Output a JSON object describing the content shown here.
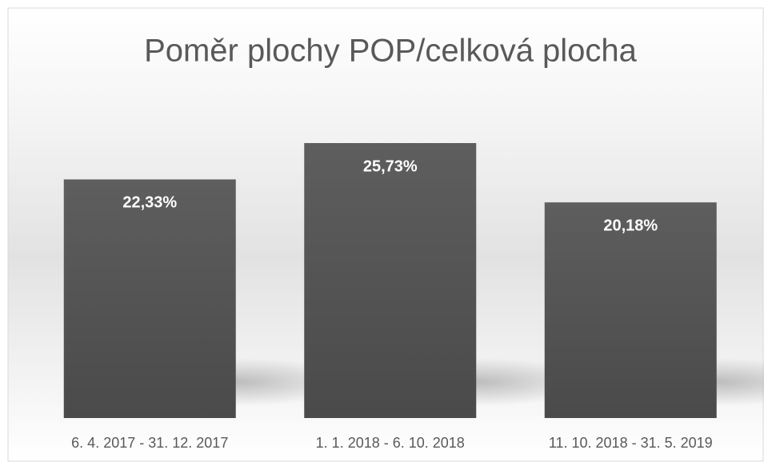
{
  "chart_data": {
    "type": "bar",
    "title": "Poměr plochy POP/celková plocha",
    "categories": [
      "6. 4. 2017 - 31. 12. 2017",
      "1. 1. 2018 - 6. 10. 2018",
      "11. 10. 2018 - 31. 5. 2019"
    ],
    "values": [
      22.33,
      25.73,
      20.18
    ],
    "value_labels": [
      "22,33%",
      "25,73%",
      "20,18%"
    ],
    "color": "#595959"
  }
}
